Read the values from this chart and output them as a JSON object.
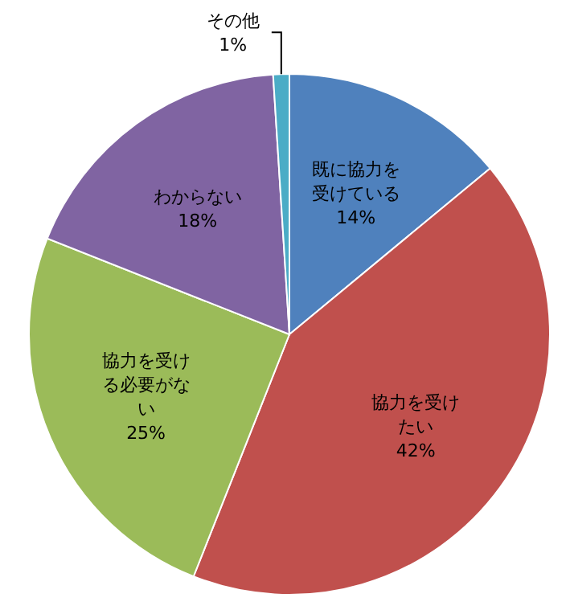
{
  "chart_data": {
    "type": "pie",
    "categories": [
      "既に協力を受けている",
      "協力を受けたい",
      "協力を受ける必要がない",
      "わからない",
      "その他"
    ],
    "values": [
      14,
      42,
      25,
      18,
      1
    ],
    "colors": [
      "#4f81bd",
      "#c0504d",
      "#9bbb59",
      "#8064a2",
      "#4bacc6"
    ],
    "value_labels": [
      "14%",
      "42%",
      "25%",
      "18%",
      "1%"
    ]
  }
}
